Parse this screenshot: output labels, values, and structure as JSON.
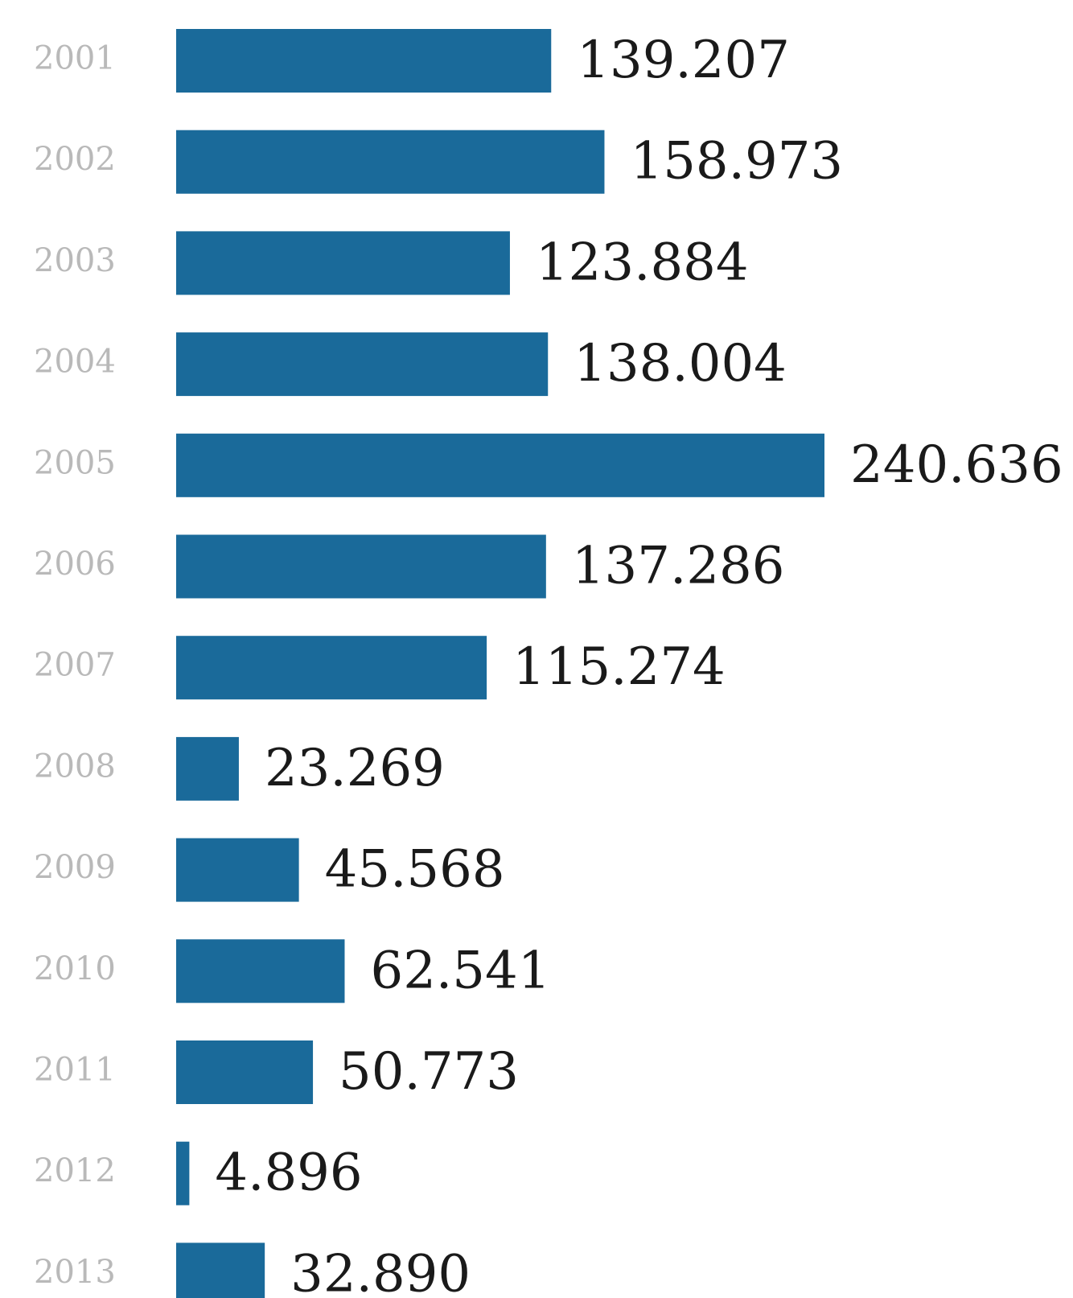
{
  "chart_data": {
    "type": "bar",
    "orientation": "horizontal",
    "categories": [
      "2001",
      "2002",
      "2003",
      "2004",
      "2005",
      "2006",
      "2007",
      "2008",
      "2009",
      "2010",
      "2011",
      "2012",
      "2013"
    ],
    "values": [
      139.207,
      158.973,
      123.884,
      138.004,
      240.636,
      137.286,
      115.274,
      23.269,
      45.568,
      62.541,
      50.773,
      4.896,
      32.89
    ],
    "value_labels": [
      "139.207",
      "158.973",
      "123.884",
      "138.004",
      "240.636",
      "137.286",
      "115.274",
      "23.269",
      "45.568",
      "62.541",
      "50.773",
      "4.896",
      "32.890"
    ],
    "bar_color": "#1a6a9a",
    "category_label_color": "#b9b9b9",
    "value_label_color": "#1a1a1a",
    "xlim": [
      0,
      240.636
    ],
    "grid": false,
    "legend": "none"
  }
}
